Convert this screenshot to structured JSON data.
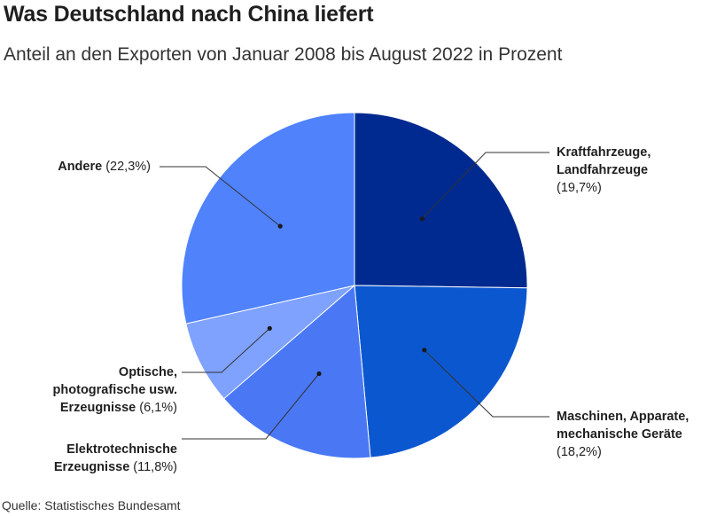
{
  "header": {
    "title": "Was Deutschland nach China liefert",
    "subtitle": "Anteil an den Exporten von Januar 2008 bis August 2022 in Prozent"
  },
  "footer": {
    "source": "Quelle: Statistisches Bundesamt"
  },
  "chart_data": {
    "type": "pie",
    "title": "Was Deutschland nach China liefert",
    "subtitle": "Anteil an den Exporten von Januar 2008 bis August 2022 in Prozent",
    "unit": "%",
    "slices": [
      {
        "label_lines": [
          "Kraftfahrzeuge,",
          "Landfahrzeuge"
        ],
        "value_label": "(19,7%)",
        "value": 19.7,
        "color": "#002a8f"
      },
      {
        "label_lines": [
          "Maschinen, Apparate,",
          "mechanische Geräte"
        ],
        "value_label": "(18,2%)",
        "value": 18.2,
        "color": "#0b57d0"
      },
      {
        "label_lines": [
          "Elektrotechnische",
          "Erzeugnisse"
        ],
        "value_label": "(11,8%)",
        "value": 11.8,
        "color": "#4a78f5"
      },
      {
        "label_lines": [
          "Optische,",
          "photografische usw.",
          "Erzeugnisse"
        ],
        "value_label": "(6,1%)",
        "value": 6.1,
        "color": "#7fa2ff"
      },
      {
        "label_lines": [
          "Andere"
        ],
        "value_label": "(22,3%)",
        "value": 22.3,
        "color": "#4f82fb"
      }
    ]
  }
}
